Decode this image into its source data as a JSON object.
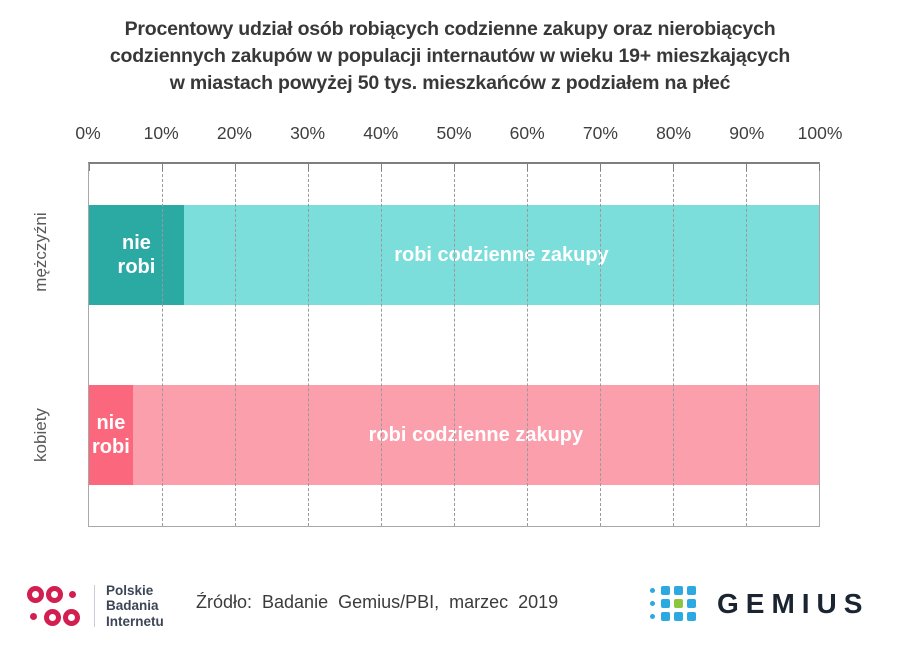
{
  "title": {
    "lines": [
      "Procentowy udział osób robiących codzienne zakupy oraz nierobiących",
      "codziennych zakupów w populacji internautów w wieku 19+ mieszkających",
      "w miastach powyżej 50 tys. mieszkańców z podziałem na płeć"
    ]
  },
  "chart_data": {
    "type": "bar",
    "orientation": "horizontal",
    "stacked": true,
    "title": "Procentowy udział osób robiących codzienne zakupy oraz nierobiących codziennych zakupów w populacji internautów w wieku 19+ mieszkających w miastach powyżej 50 tys. mieszkańców z podziałem na płeć",
    "categories": [
      "mężczyźni",
      "kobiety"
    ],
    "series": [
      {
        "name": "nie robi",
        "values": [
          13,
          6
        ]
      },
      {
        "name": "robi codzienne zakupy",
        "values": [
          87,
          94
        ]
      }
    ],
    "unit": "%",
    "xlim": [
      0,
      100
    ],
    "tick_labels": [
      "0%",
      "10%",
      "20%",
      "30%",
      "40%",
      "50%",
      "60%",
      "70%",
      "80%",
      "90%",
      "100%"
    ],
    "grid": "dashed-vertical",
    "legend": "none",
    "bars": [
      {
        "category": "mężczyźni",
        "segments": [
          {
            "label": "nie robi",
            "value": 13,
            "color": "#2BA9A3"
          },
          {
            "label": "robi codzienne zakupy",
            "value": 87,
            "color": "#7CDEDB"
          }
        ]
      },
      {
        "category": "kobiety",
        "segments": [
          {
            "label": "nie robi",
            "value": 6,
            "color": "#FB687E"
          },
          {
            "label": "robi codzienne zakupy",
            "value": 94,
            "color": "#FB9FAD"
          }
        ]
      }
    ],
    "colors": {
      "men_nie_robi": "#2BA9A3",
      "men_robi": "#7CDEDB",
      "women_nie_robi": "#FB687E",
      "women_robi": "#FB9FAD"
    }
  },
  "footer": {
    "pbi": {
      "lines": [
        "Polskie",
        "Badania",
        "Internetu"
      ],
      "accent": "#D21F50",
      "text_color": "#3C4656"
    },
    "source": "Źródło: Badanie Gemius/PBI, marzec 2019",
    "gemius": {
      "label": "GEMIUS",
      "blue": "#2BA9E0",
      "green": "#8CC63F",
      "text_color": "#1B2431"
    }
  }
}
